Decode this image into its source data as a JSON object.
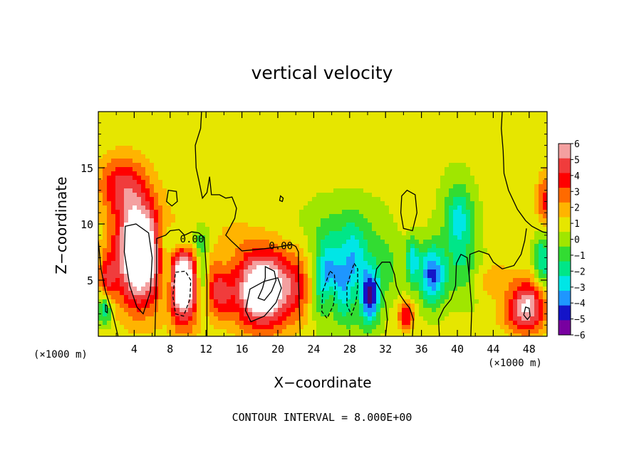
{
  "chart_data": {
    "type": "heatmap",
    "title": "vertical velocity",
    "xlabel": "X−coordinate",
    "ylabel": "Z−coordinate",
    "x_unit_left": "(×1000 m)",
    "x_unit_right": "(×1000 m)",
    "caption": "CONTOUR INTERVAL = 8.000E+00",
    "xlim": [
      0,
      50
    ],
    "ylim": [
      0,
      20
    ],
    "x_ticks": [
      4,
      8,
      12,
      16,
      20,
      24,
      28,
      32,
      36,
      40,
      44,
      48
    ],
    "y_ticks": [
      5,
      10,
      15
    ],
    "contour_label": "0.00",
    "colorbar": {
      "min": -6,
      "max": 6,
      "ticks": [
        "6",
        "5",
        "4",
        "3",
        "2",
        "1",
        "0",
        "−1",
        "−2",
        "−3",
        "−4",
        "−5",
        "−6"
      ],
      "colors": [
        "#f4a0a0",
        "#f03c3c",
        "#ff0000",
        "#ff6a00",
        "#ffb400",
        "#e6e600",
        "#a0e600",
        "#32dc32",
        "#00e688",
        "#00e6e6",
        "#1e96ff",
        "#1414c8",
        "#7800a0"
      ]
    },
    "background_value": 0.3,
    "features": [
      {
        "x": 4.5,
        "z": 7.5,
        "rx": 2.5,
        "rz": 4.6,
        "value": 9.5
      },
      {
        "x": 1.0,
        "z": 4.8,
        "rx": 0.9,
        "rz": 2.5,
        "value": 3.5
      },
      {
        "x": 2.5,
        "z": 13.5,
        "rx": 2.6,
        "rz": 2.6,
        "value": 3.5
      },
      {
        "x": 0.8,
        "z": 2.5,
        "rx": 0.8,
        "rz": 1.4,
        "value": -4.5
      },
      {
        "x": 9.5,
        "z": 4.7,
        "rx": 2.0,
        "rz": 3.6,
        "value": 8.0
      },
      {
        "x": 7.6,
        "z": 5.5,
        "rx": 0.8,
        "rz": 3.2,
        "value": -4.0
      },
      {
        "x": 11.5,
        "z": 5.5,
        "rx": 0.8,
        "rz": 3.2,
        "value": -4.0
      },
      {
        "x": 9.5,
        "z": 8.5,
        "rx": 2.5,
        "rz": 1.2,
        "value": -2.5
      },
      {
        "x": 13.5,
        "z": 3.8,
        "rx": 1.3,
        "rz": 2.2,
        "value": 3.5
      },
      {
        "x": 12.5,
        "z": 6.5,
        "rx": 1.0,
        "rz": 2.0,
        "value": 1.0
      },
      {
        "x": 18.3,
        "z": 4.2,
        "rx": 3.2,
        "rz": 3.4,
        "value": 8.5
      },
      {
        "x": 15.0,
        "z": 9.0,
        "rx": 2.5,
        "rz": 1.5,
        "value": 1.0
      },
      {
        "x": 22.5,
        "z": 4.5,
        "rx": 2.0,
        "rz": 3.0,
        "value": 2.0
      },
      {
        "x": 25.6,
        "z": 4.8,
        "rx": 1.6,
        "rz": 3.3,
        "value": -6.0
      },
      {
        "x": 28.5,
        "z": 4.8,
        "rx": 1.4,
        "rz": 3.6,
        "value": -6.5
      },
      {
        "x": 25.8,
        "z": 3.5,
        "rx": 0.9,
        "rz": 2.0,
        "value": 3.0
      },
      {
        "x": 28.6,
        "z": 4.0,
        "rx": 0.9,
        "rz": 2.5,
        "value": 4.0
      },
      {
        "x": 30.4,
        "z": 3.5,
        "rx": 1.0,
        "rz": 2.4,
        "value": -5.5
      },
      {
        "x": 27.5,
        "z": 9.5,
        "rx": 4.0,
        "rz": 2.5,
        "value": -1.5
      },
      {
        "x": 32.0,
        "z": 6.0,
        "rx": 2.0,
        "rz": 3.0,
        "value": -1.5
      },
      {
        "x": 34.3,
        "z": 1.8,
        "rx": 0.9,
        "rz": 1.3,
        "value": 4.0
      },
      {
        "x": 37.2,
        "z": 5.5,
        "rx": 1.5,
        "rz": 2.6,
        "value": -5.5
      },
      {
        "x": 35.0,
        "z": 6.8,
        "rx": 0.7,
        "rz": 2.0,
        "value": -3.5
      },
      {
        "x": 40.2,
        "z": 10.3,
        "rx": 1.6,
        "rz": 3.2,
        "value": -3.8
      },
      {
        "x": 41.0,
        "z": 5.5,
        "rx": 2.0,
        "rz": 2.5,
        "value": -2.0
      },
      {
        "x": 34.5,
        "z": 11.5,
        "rx": 1.5,
        "rz": 2.5,
        "value": 0.8
      },
      {
        "x": 43.5,
        "z": 5.0,
        "rx": 2.5,
        "rz": 1.5,
        "value": 1.8
      },
      {
        "x": 47.8,
        "z": 2.6,
        "rx": 2.0,
        "rz": 2.3,
        "value": 6.0
      },
      {
        "x": 49.5,
        "z": 6.8,
        "rx": 0.9,
        "rz": 2.5,
        "value": -3.5
      },
      {
        "x": 49.7,
        "z": 12.0,
        "rx": 0.9,
        "rz": 2.5,
        "value": 3.0
      },
      {
        "x": 45.5,
        "z": 1.8,
        "rx": 1.5,
        "rz": 1.3,
        "value": 1.0
      }
    ],
    "contours": [
      {
        "style": "solid",
        "points": [
          [
            11.5,
            20
          ],
          [
            11.4,
            18.5
          ],
          [
            10.8,
            17
          ],
          [
            10.9,
            15
          ],
          [
            11.3,
            13.5
          ],
          [
            11.6,
            12.3
          ],
          [
            12.1,
            12.8
          ],
          [
            12.4,
            14.2
          ],
          [
            12.6,
            12.6
          ],
          [
            13.5,
            12.6
          ],
          [
            14.2,
            12.3
          ],
          [
            14.9,
            12.4
          ],
          [
            15.4,
            11.4
          ],
          [
            15.2,
            10.5
          ],
          [
            14.6,
            9.6
          ],
          [
            14.2,
            9.0
          ],
          [
            14.8,
            8.5
          ],
          [
            16.0,
            7.6
          ],
          [
            17.3,
            7.7
          ],
          [
            18.5,
            7.8
          ],
          [
            19.5,
            7.9
          ],
          [
            20.5,
            8.0
          ],
          [
            21.5,
            8.2
          ],
          [
            22.0,
            8.0
          ],
          [
            22.3,
            7.5
          ],
          [
            22.3,
            5.0
          ],
          [
            22.4,
            2.5
          ],
          [
            22.5,
            0
          ]
        ]
      },
      {
        "style": "solid",
        "points": [
          [
            6.3,
            0
          ],
          [
            6.4,
            3.0
          ],
          [
            6.5,
            6.0
          ],
          [
            6.5,
            8.7
          ],
          [
            7.5,
            9.0
          ],
          [
            8.0,
            9.4
          ],
          [
            9.0,
            9.5
          ],
          [
            9.6,
            9.0
          ],
          [
            10.4,
            9.3
          ],
          [
            11.2,
            9.2
          ],
          [
            11.8,
            8.8
          ],
          [
            12.1,
            5.0
          ],
          [
            12.1,
            0
          ]
        ]
      },
      {
        "style": "solid",
        "points": [
          [
            0,
            8.5
          ],
          [
            0.3,
            6.0
          ],
          [
            0.8,
            4.0
          ],
          [
            1.6,
            2.0
          ],
          [
            2.2,
            0
          ]
        ]
      },
      {
        "style": "solid",
        "points": [
          [
            45.0,
            20
          ],
          [
            44.9,
            18.5
          ],
          [
            45.1,
            16.5
          ],
          [
            45.2,
            14.5
          ],
          [
            45.7,
            13.0
          ],
          [
            46.7,
            11.3
          ],
          [
            47.6,
            10.3
          ],
          [
            48.3,
            9.8
          ],
          [
            49.5,
            9.3
          ],
          [
            50,
            9.2
          ]
        ]
      },
      {
        "style": "solid",
        "points": [
          [
            41.5,
            0
          ],
          [
            41.6,
            2.5
          ],
          [
            41.3,
            5.5
          ],
          [
            41.4,
            7.3
          ],
          [
            42.4,
            7.6
          ],
          [
            43.5,
            7.3
          ],
          [
            44.0,
            6.6
          ],
          [
            45.0,
            6.0
          ],
          [
            46.3,
            6.3
          ],
          [
            47.1,
            7.3
          ],
          [
            47.5,
            8.5
          ],
          [
            47.7,
            9.6
          ]
        ]
      },
      {
        "style": "solid",
        "points": [
          [
            32.0,
            0
          ],
          [
            32.2,
            1.5
          ],
          [
            32.0,
            3.0
          ],
          [
            31.5,
            4.0
          ],
          [
            30.8,
            5.0
          ],
          [
            31.0,
            6.0
          ],
          [
            31.6,
            6.6
          ],
          [
            32.5,
            6.6
          ],
          [
            33.0,
            5.5
          ],
          [
            33.2,
            4.5
          ],
          [
            33.6,
            3.7
          ],
          [
            34.2,
            3.0
          ],
          [
            34.7,
            2.5
          ],
          [
            35.1,
            1.5
          ],
          [
            35.0,
            0
          ]
        ]
      },
      {
        "style": "solid",
        "points": [
          [
            38.0,
            0
          ],
          [
            37.9,
            1.5
          ],
          [
            38.5,
            2.5
          ],
          [
            39.3,
            3.3
          ],
          [
            39.8,
            4.5
          ],
          [
            39.9,
            6.5
          ],
          [
            40.4,
            7.3
          ],
          [
            41.1,
            7.0
          ],
          [
            41.3,
            5.5
          ]
        ]
      },
      {
        "style": "solid",
        "closed": true,
        "points": [
          [
            34.4,
            13.0
          ],
          [
            35.3,
            12.6
          ],
          [
            35.5,
            11.0
          ],
          [
            35.0,
            9.4
          ],
          [
            34.0,
            9.6
          ],
          [
            33.7,
            11.0
          ],
          [
            33.8,
            12.5
          ]
        ]
      },
      {
        "style": "solid",
        "closed": true,
        "points": [
          [
            7.8,
            13.0
          ],
          [
            8.7,
            12.9
          ],
          [
            8.8,
            12.0
          ],
          [
            8.2,
            11.6
          ],
          [
            7.6,
            12.0
          ]
        ]
      },
      {
        "style": "solid",
        "closed": true,
        "points": [
          [
            20.3,
            12.5
          ],
          [
            20.6,
            12.3
          ],
          [
            20.5,
            12.0
          ],
          [
            20.2,
            12.1
          ]
        ]
      },
      {
        "style": "solid",
        "closed": true,
        "points": [
          [
            3.0,
            9.8
          ],
          [
            4.2,
            10.0
          ],
          [
            5.6,
            9.2
          ],
          [
            6.0,
            7.0
          ],
          [
            5.8,
            4.0
          ],
          [
            5.0,
            2.0
          ],
          [
            4.3,
            2.6
          ],
          [
            3.5,
            4.5
          ],
          [
            2.9,
            7.5
          ]
        ]
      },
      {
        "style": "solid",
        "closed": true,
        "points": [
          [
            16.9,
            4.2
          ],
          [
            18.5,
            4.9
          ],
          [
            20.0,
            5.2
          ],
          [
            20.4,
            4.3
          ],
          [
            19.8,
            3.0
          ],
          [
            18.5,
            1.8
          ],
          [
            17.0,
            1.3
          ],
          [
            16.4,
            2.3
          ]
        ]
      },
      {
        "style": "solid",
        "closed": true,
        "points": [
          [
            47.6,
            2.6
          ],
          [
            48.0,
            2.5
          ],
          [
            48.1,
            1.8
          ],
          [
            47.8,
            1.5
          ],
          [
            47.4,
            1.9
          ]
        ]
      },
      {
        "style": "solid",
        "closed": true,
        "points": [
          [
            0.8,
            2.8
          ],
          [
            1.0,
            2.7
          ],
          [
            1.0,
            2.1
          ],
          [
            0.8,
            2.2
          ]
        ]
      },
      {
        "style": "dashed",
        "closed": true,
        "points": [
          [
            8.6,
            5.7
          ],
          [
            9.7,
            5.8
          ],
          [
            10.3,
            5.0
          ],
          [
            10.2,
            3.3
          ],
          [
            9.5,
            1.8
          ],
          [
            8.6,
            2.0
          ],
          [
            8.3,
            3.6
          ]
        ]
      },
      {
        "style": "dashed",
        "closed": true,
        "points": [
          [
            25.8,
            5.8
          ],
          [
            26.3,
            5.5
          ],
          [
            26.4,
            4.3
          ],
          [
            26.2,
            2.8
          ],
          [
            25.5,
            1.6
          ],
          [
            24.9,
            2.2
          ],
          [
            25.0,
            4.0
          ]
        ]
      },
      {
        "style": "dashed",
        "closed": true,
        "points": [
          [
            28.5,
            6.5
          ],
          [
            28.9,
            6.0
          ],
          [
            28.9,
            4.4
          ],
          [
            28.7,
            3.0
          ],
          [
            28.2,
            1.9
          ],
          [
            27.7,
            2.8
          ],
          [
            27.7,
            4.5
          ]
        ]
      },
      {
        "style": "solid",
        "closed": true,
        "points": [
          [
            18.6,
            6.2
          ],
          [
            19.6,
            5.8
          ],
          [
            19.8,
            5.0
          ],
          [
            19.3,
            4.0
          ],
          [
            18.5,
            3.2
          ],
          [
            17.8,
            3.4
          ],
          [
            18.3,
            4.3
          ],
          [
            18.6,
            5.2
          ]
        ]
      }
    ]
  }
}
